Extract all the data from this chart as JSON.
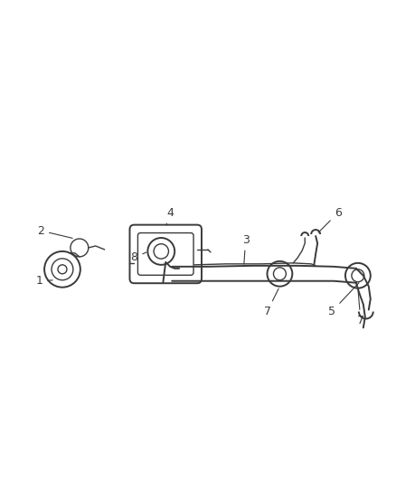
{
  "background_color": "#ffffff",
  "line_color": "#3a3a3a",
  "label_color": "#3a3a3a",
  "figsize": [
    4.38,
    5.33
  ],
  "dpi": 100
}
